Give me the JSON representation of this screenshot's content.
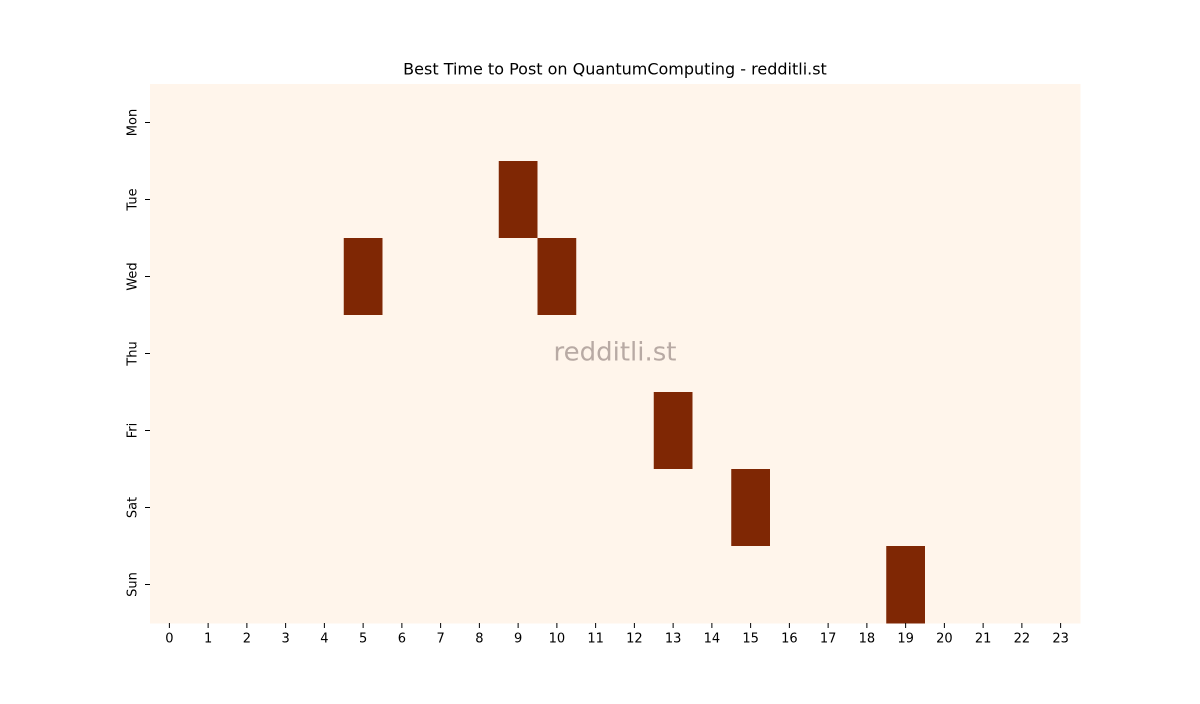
{
  "chart_data": {
    "type": "heatmap",
    "title": "Best Time to Post on QuantumComputing - redditli.st",
    "watermark": "redditli.st",
    "x_categories": [
      0,
      1,
      2,
      3,
      4,
      5,
      6,
      7,
      8,
      9,
      10,
      11,
      12,
      13,
      14,
      15,
      16,
      17,
      18,
      19,
      20,
      21,
      22,
      23
    ],
    "y_categories": [
      "Mon",
      "Tue",
      "Wed",
      "Thu",
      "Fri",
      "Sat",
      "Sun"
    ],
    "values": [
      [
        0,
        0,
        0,
        0,
        0,
        0,
        0,
        0,
        0,
        0,
        0,
        0,
        0,
        0,
        0,
        0,
        0,
        0,
        0,
        0,
        0,
        0,
        0,
        0
      ],
      [
        0,
        0,
        0,
        0,
        0,
        0,
        0,
        0,
        0,
        1,
        0,
        0,
        0,
        0,
        0,
        0,
        0,
        0,
        0,
        0,
        0,
        0,
        0,
        0
      ],
      [
        0,
        0,
        0,
        0,
        0,
        1,
        0,
        0,
        0,
        0,
        1,
        0,
        0,
        0,
        0,
        0,
        0,
        0,
        0,
        0,
        0,
        0,
        0,
        0
      ],
      [
        0,
        0,
        0,
        0,
        0,
        0,
        0,
        0,
        0,
        0,
        0,
        0,
        0,
        0,
        0,
        0,
        0,
        0,
        0,
        0,
        0,
        0,
        0,
        0
      ],
      [
        0,
        0,
        0,
        0,
        0,
        0,
        0,
        0,
        0,
        0,
        0,
        0,
        0,
        1,
        0,
        0,
        0,
        0,
        0,
        0,
        0,
        0,
        0,
        0
      ],
      [
        0,
        0,
        0,
        0,
        0,
        0,
        0,
        0,
        0,
        0,
        0,
        0,
        0,
        0,
        0,
        1,
        0,
        0,
        0,
        0,
        0,
        0,
        0,
        0
      ],
      [
        0,
        0,
        0,
        0,
        0,
        0,
        0,
        0,
        0,
        0,
        0,
        0,
        0,
        0,
        0,
        0,
        0,
        0,
        0,
        1,
        0,
        0,
        0,
        0
      ]
    ],
    "zlim": [
      0,
      1
    ],
    "colors": [
      "#fff5eb",
      "#7f2704"
    ]
  }
}
